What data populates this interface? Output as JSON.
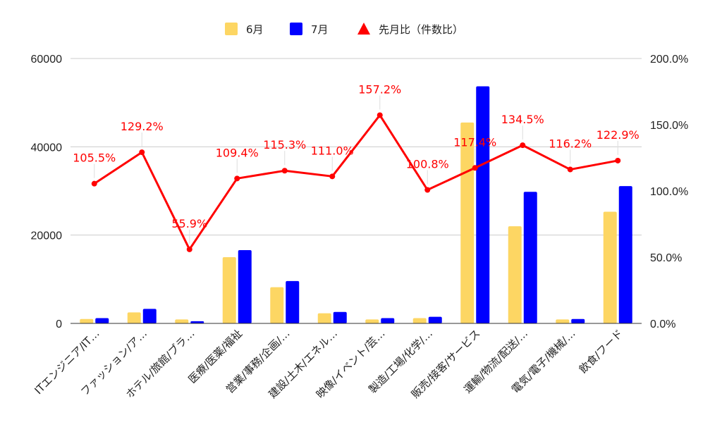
{
  "chart_data": {
    "type": "bar",
    "categories": [
      "ITエンジニア/IT…",
      "ファッション/ア…",
      "ホテル/旅館/ブラ…",
      "医療/医薬/福祉",
      "営業/事務/企画/…",
      "建設/土木/エネル…",
      "映像/イベント/芸…",
      "製造/工場/化学/…",
      "販売/接客/サービス",
      "運輸/物流/配送/…",
      "電気/電子/機械/…",
      "飲食/フード"
    ],
    "series": [
      {
        "name": "6月",
        "type": "bar",
        "axis": "left",
        "color": "#fdd663",
        "values": [
          1000,
          2500,
          900,
          15000,
          8200,
          2300,
          900,
          1200,
          45500,
          22000,
          900,
          25300
        ]
      },
      {
        "name": "7月",
        "type": "bar",
        "axis": "left",
        "color": "#0000ff",
        "values": [
          1200,
          3300,
          500,
          16600,
          9600,
          2600,
          1200,
          1500,
          53700,
          29800,
          1000,
          31100
        ]
      },
      {
        "name": "先月比（件数比）",
        "type": "line",
        "axis": "right",
        "color": "#ff0000",
        "values": [
          105.5,
          129.2,
          55.9,
          109.4,
          115.3,
          111.0,
          157.2,
          100.8,
          117.4,
          134.5,
          116.2,
          122.9
        ],
        "labels": [
          "105.5%",
          "129.2%",
          "55.9%",
          "109.4%",
          "115.3%",
          "111.0%",
          "157.2%",
          "100.8%",
          "117.4%",
          "134.5%",
          "116.2%",
          "122.9%"
        ]
      }
    ],
    "y_left": {
      "ylim": [
        0,
        60000
      ],
      "ticks": [
        0,
        20000,
        40000,
        60000
      ],
      "tick_labels": [
        "0",
        "20000",
        "40000",
        "60000"
      ]
    },
    "y_right": {
      "ylim": [
        0,
        200
      ],
      "ticks": [
        0,
        50,
        100,
        150,
        200
      ],
      "tick_labels": [
        "0.0%",
        "50.0%",
        "100.0%",
        "150.0%",
        "200.0%"
      ]
    },
    "legend": {
      "position": "top",
      "entries": [
        {
          "label": "6月",
          "marker": "square",
          "color": "#fdd663"
        },
        {
          "label": "7月",
          "marker": "square",
          "color": "#0000ff"
        },
        {
          "label": "先月比（件数比）",
          "marker": "triangle",
          "color": "#ff0000"
        }
      ]
    },
    "grid": true,
    "title": "",
    "xlabel": "",
    "ylabel": ""
  }
}
